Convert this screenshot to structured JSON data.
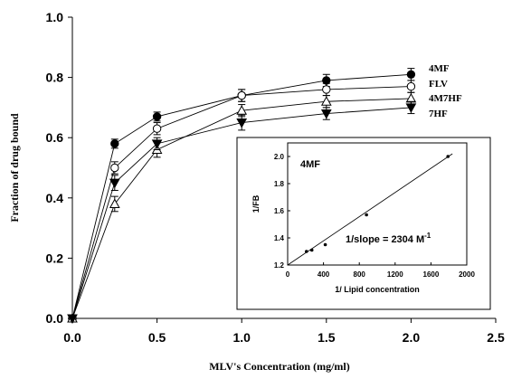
{
  "chart_data": [
    {
      "type": "line",
      "xlabel": "MLV's Concentration (mg/ml)",
      "ylabel": "Fraction of drug bound",
      "xlim": [
        0,
        2.5
      ],
      "ylim": [
        0,
        1.0
      ],
      "x_ticks": [
        "0.0",
        "0.5",
        "1.0",
        "1.5",
        "2.0",
        "2.5"
      ],
      "y_ticks": [
        "0.0",
        "0.2",
        "0.4",
        "0.6",
        "0.8",
        "1.0"
      ],
      "grid": false,
      "legend": "right-end labels",
      "x": [
        0,
        0.25,
        0.5,
        1.0,
        1.5,
        2.0
      ],
      "series": [
        {
          "name": "4MF",
          "marker": "filled-circle",
          "values": [
            0,
            0.58,
            0.67,
            0.74,
            0.79,
            0.81
          ],
          "errors": [
            0,
            0.015,
            0.015,
            0.02,
            0.02,
            0.02
          ]
        },
        {
          "name": "FLV",
          "marker": "open-circle",
          "values": [
            0,
            0.5,
            0.63,
            0.74,
            0.76,
            0.77
          ],
          "errors": [
            0,
            0.02,
            0.02,
            0.02,
            0.02,
            0.02
          ]
        },
        {
          "name": "4M7HF",
          "marker": "open-triangle",
          "values": [
            0,
            0.38,
            0.56,
            0.69,
            0.72,
            0.73
          ],
          "errors": [
            0,
            0.025,
            0.025,
            0.02,
            0.02,
            0.02
          ]
        },
        {
          "name": "7HF",
          "marker": "filled-triangle-down",
          "values": [
            0,
            0.45,
            0.58,
            0.65,
            0.68,
            0.7
          ],
          "errors": [
            0,
            0.025,
            0.02,
            0.025,
            0.02,
            0.02
          ]
        }
      ]
    },
    {
      "type": "scatter",
      "inset": true,
      "title": "4MF",
      "xlabel": "1/ Lipid concentration",
      "ylabel": "1/FB",
      "annotation": "1/slope = 2304 M",
      "annotation_sup": "-1",
      "xlim": [
        0,
        2000
      ],
      "ylim": [
        1.2,
        2.1
      ],
      "x_ticks": [
        "0",
        "400",
        "800",
        "1200",
        "1600",
        "2000"
      ],
      "y_ticks": [
        "1.2",
        "1.4",
        "1.6",
        "1.8",
        "2.0"
      ],
      "points": [
        {
          "x": 210,
          "y": 1.3
        },
        {
          "x": 270,
          "y": 1.31
        },
        {
          "x": 420,
          "y": 1.35
        },
        {
          "x": 880,
          "y": 1.57
        },
        {
          "x": 1790,
          "y": 2.0
        }
      ],
      "fit_line": {
        "x": [
          0,
          1840
        ],
        "y": [
          1.2,
          2.02
        ]
      }
    }
  ]
}
